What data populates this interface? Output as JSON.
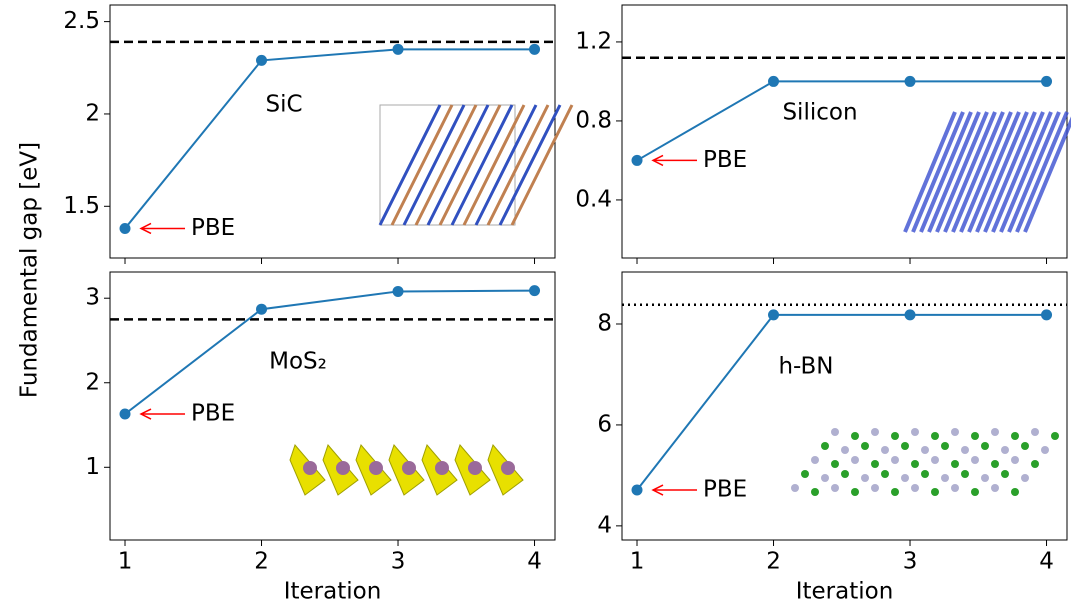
{
  "ylabel": "Fundamental gap [eV]",
  "chart_data": [
    {
      "type": "line",
      "label": "SiC",
      "x": [
        1,
        2,
        3,
        4
      ],
      "values": [
        1.38,
        2.29,
        2.35,
        2.35
      ],
      "color": "#1f77b4",
      "xlim": [
        0.89,
        4.15
      ],
      "xticks": [
        1,
        2,
        3,
        4
      ],
      "xtick_labels": false,
      "ylim": [
        1.22,
        2.59
      ],
      "yticks": [
        1.5,
        2.0,
        2.5
      ],
      "hline": 2.39,
      "hline_style": "dashed",
      "annotation": "PBE",
      "annotation_color": "red"
    },
    {
      "type": "line",
      "label": "Silicon",
      "x": [
        1,
        2,
        3,
        4
      ],
      "values": [
        0.6,
        1.0,
        1.0,
        1.0
      ],
      "color": "#1f77b4",
      "xlim": [
        0.89,
        4.15
      ],
      "xticks": [
        1,
        2,
        3,
        4
      ],
      "xtick_labels": false,
      "ylim": [
        0.106,
        1.387
      ],
      "yticks": [
        0.4,
        0.8,
        1.2
      ],
      "hline": 1.12,
      "hline_style": "dashed",
      "annotation": "PBE",
      "annotation_color": "red"
    },
    {
      "type": "line",
      "label": "MoS₂",
      "x": [
        1,
        2,
        3,
        4
      ],
      "values": [
        1.63,
        2.87,
        3.08,
        3.09
      ],
      "color": "#1f77b4",
      "xlim": [
        0.89,
        4.15
      ],
      "xticks": [
        1,
        2,
        3,
        4
      ],
      "xtick_labels": true,
      "xlabel": "Iteration",
      "ylim": [
        0.14,
        3.31
      ],
      "yticks": [
        1,
        2,
        3
      ],
      "hline": 2.75,
      "hline_style": "dashed",
      "annotation": "PBE",
      "annotation_color": "red"
    },
    {
      "type": "line",
      "label": "h-BN",
      "x": [
        1,
        2,
        3,
        4
      ],
      "values": [
        4.71,
        8.18,
        8.18,
        8.18
      ],
      "color": "#1f77b4",
      "xlim": [
        0.89,
        4.15
      ],
      "xticks": [
        1,
        2,
        3,
        4
      ],
      "xtick_labels": true,
      "xlabel": "Iteration",
      "ylim": [
        3.72,
        9.03
      ],
      "yticks": [
        4,
        6,
        8
      ],
      "hline": 8.38,
      "hline_style": "dotted",
      "annotation": "PBE",
      "annotation_color": "red"
    }
  ]
}
